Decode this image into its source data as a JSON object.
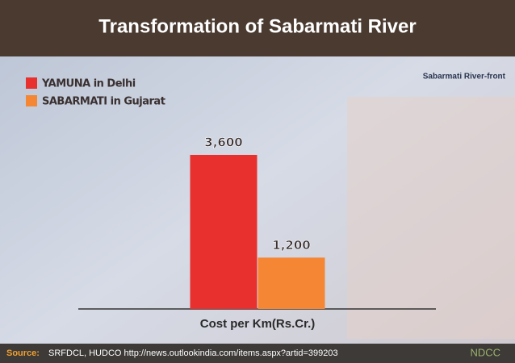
{
  "chart_data": {
    "type": "bar",
    "title": "Transformation of Sabarmati River",
    "annotation": "Sabarmati River-front",
    "categories": [
      "Cost per Km(Rs.Cr.)"
    ],
    "series": [
      {
        "name": "YAMUNA in Delhi",
        "color": "#e8302e",
        "values": [
          3600
        ],
        "value_labels": [
          "3,600"
        ]
      },
      {
        "name": "SABARMATI in Gujarat",
        "color": "#f58634",
        "values": [
          1200
        ],
        "value_labels": [
          "1,200"
        ]
      }
    ],
    "source_label": "Source:",
    "source_text": "SRFDCL, HUDCO http://news.outlookindia.com/items.aspx?artid=399203",
    "logo": "NDCC"
  }
}
